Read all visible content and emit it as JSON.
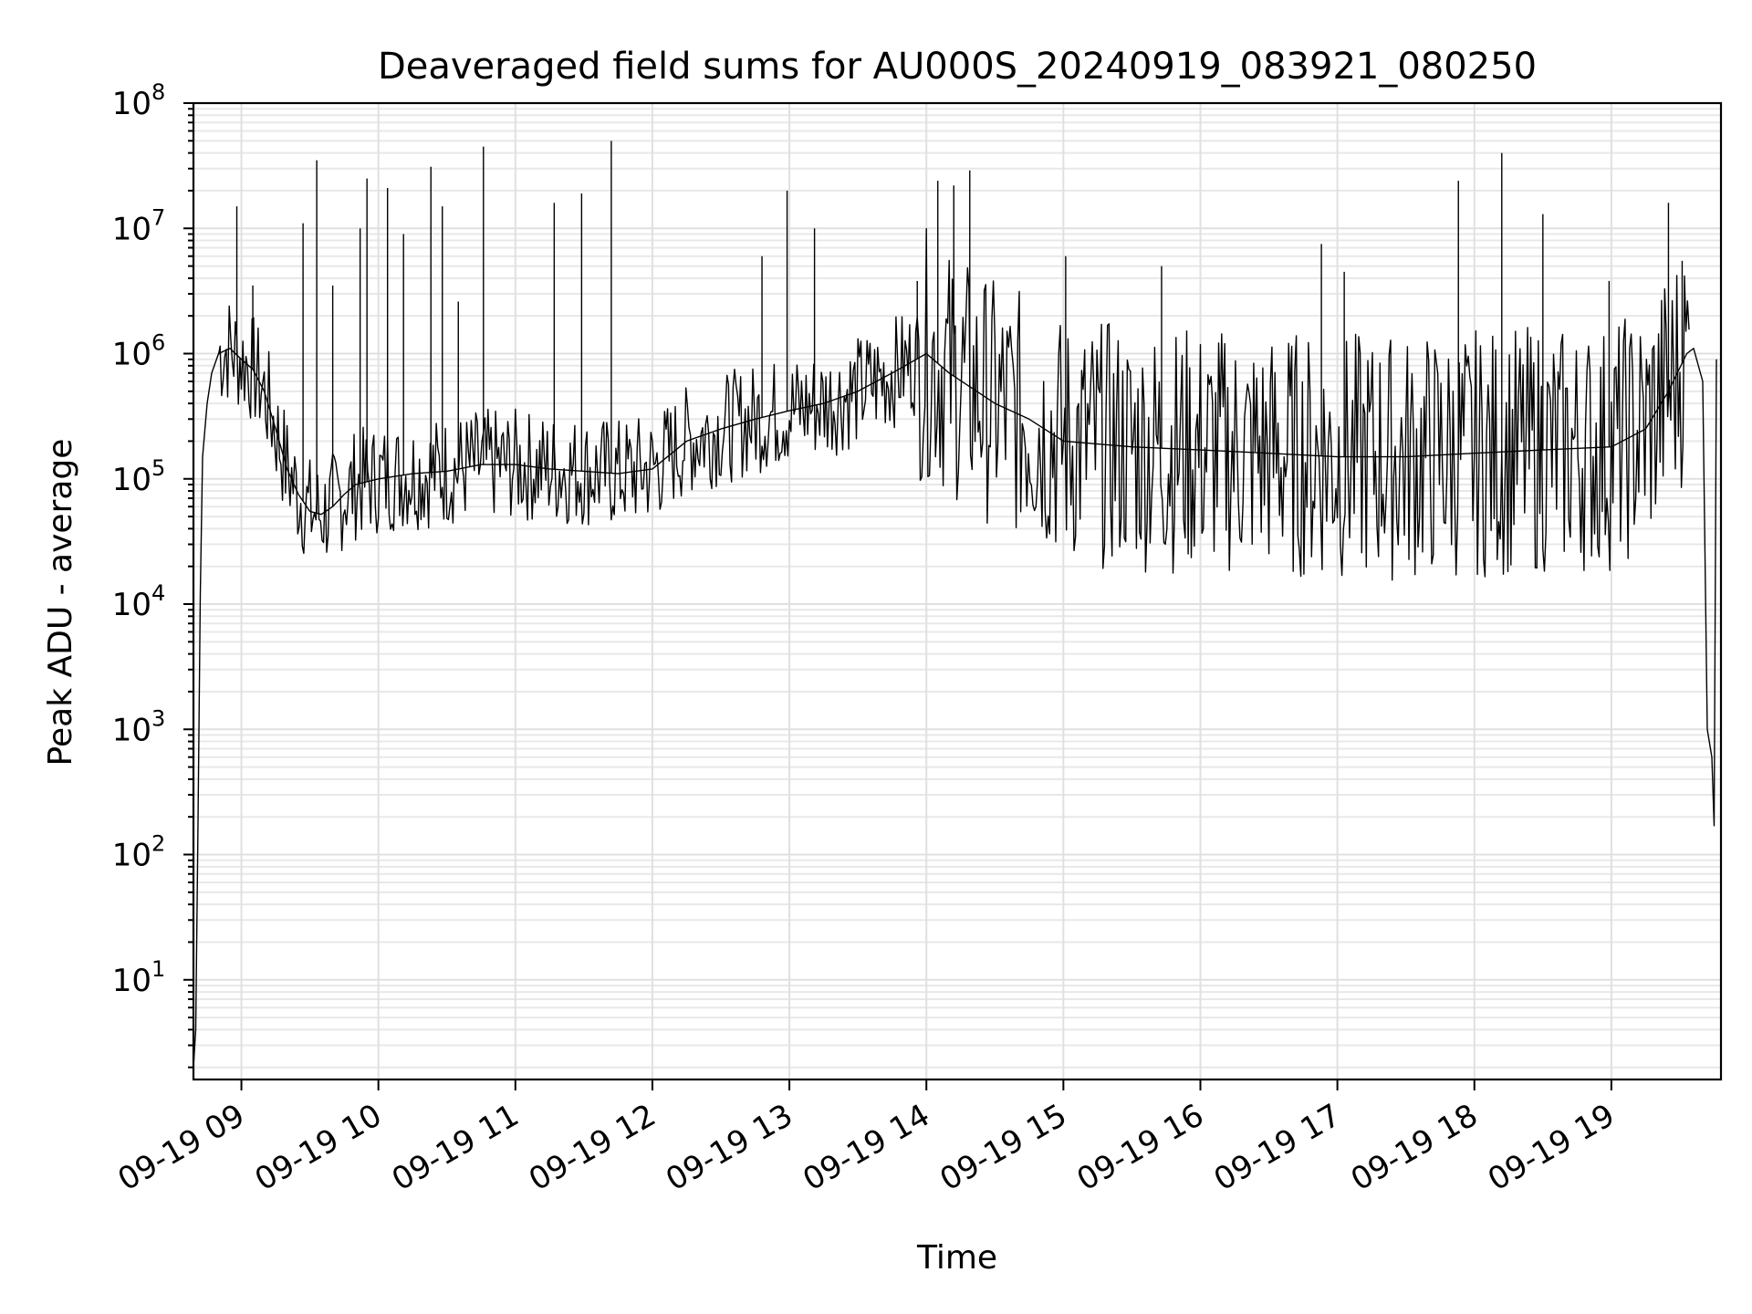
{
  "chart_data": {
    "type": "line",
    "title": "Deaveraged field sums for AU000S_20240919_083921_080250",
    "xlabel": "Time",
    "ylabel": "Peak ADU - average",
    "yscale": "log",
    "ylim": [
      1.6,
      100000000
    ],
    "xlim": [
      "2024-09-19 08:39",
      "2024-09-19 19:48"
    ],
    "grid": "on (major and minor)",
    "line_color": "#000000",
    "x_ticks": [
      "2024-09-19 09:00",
      "2024-09-19 10:00",
      "2024-09-19 11:00",
      "2024-09-19 12:00",
      "2024-09-19 13:00",
      "2024-09-19 14:00",
      "2024-09-19 15:00",
      "2024-09-19 16:00",
      "2024-09-19 17:00",
      "2024-09-19 18:00",
      "2024-09-19 19:00"
    ],
    "x_tick_labels": [
      "09-19 09",
      "09-19 10",
      "09-19 11",
      "09-19 12",
      "09-19 13",
      "09-19 14",
      "09-19 15",
      "09-19 16",
      "09-19 17",
      "09-19 18",
      "09-19 19"
    ],
    "y_ticks": [
      10,
      100,
      1000,
      10000,
      100000,
      1000000,
      10000000,
      100000000
    ],
    "y_tick_bases": [
      "10",
      "10",
      "10",
      "10",
      "10",
      "10",
      "10",
      "10"
    ],
    "y_tick_exponents": [
      "1",
      "2",
      "3",
      "4",
      "5",
      "6",
      "7",
      "8"
    ],
    "series": [
      {
        "points": [
          [
            "2024-09-19 08:39",
            2
          ],
          [
            "2024-09-19 08:40",
            4
          ],
          [
            "2024-09-19 08:41",
            180
          ],
          [
            "2024-09-19 08:42",
            12000
          ],
          [
            "2024-09-19 08:43",
            150000
          ],
          [
            "2024-09-19 08:45",
            400000
          ],
          [
            "2024-09-19 08:47",
            700000
          ],
          [
            "2024-09-19 08:50",
            1000000
          ],
          [
            "2024-09-19 08:55",
            1100000
          ],
          [
            "2024-09-19 09:00",
            900000
          ],
          [
            "2024-09-19 09:05",
            750000
          ],
          [
            "2024-09-19 09:10",
            500000
          ],
          [
            "2024-09-19 09:15",
            250000
          ],
          [
            "2024-09-19 09:20",
            120000
          ],
          [
            "2024-09-19 09:25",
            75000
          ],
          [
            "2024-09-19 09:30",
            55000
          ],
          [
            "2024-09-19 09:35",
            52000
          ],
          [
            "2024-09-19 09:40",
            60000
          ],
          [
            "2024-09-19 09:45",
            75000
          ],
          [
            "2024-09-19 09:50",
            90000
          ],
          [
            "2024-09-19 10:00",
            100000
          ],
          [
            "2024-09-19 10:15",
            110000
          ],
          [
            "2024-09-19 10:30",
            115000
          ],
          [
            "2024-09-19 10:45",
            130000
          ],
          [
            "2024-09-19 11:00",
            130000
          ],
          [
            "2024-09-19 11:15",
            120000
          ],
          [
            "2024-09-19 11:30",
            115000
          ],
          [
            "2024-09-19 11:45",
            110000
          ],
          [
            "2024-09-19 12:00",
            120000
          ],
          [
            "2024-09-19 12:15",
            200000
          ],
          [
            "2024-09-19 12:30",
            250000
          ],
          [
            "2024-09-19 12:45",
            300000
          ],
          [
            "2024-09-19 13:00",
            350000
          ],
          [
            "2024-09-19 13:15",
            400000
          ],
          [
            "2024-09-19 13:30",
            500000
          ],
          [
            "2024-09-19 13:45",
            700000
          ],
          [
            "2024-09-19 14:00",
            1000000
          ],
          [
            "2024-09-19 14:10",
            700000
          ],
          [
            "2024-09-19 14:30",
            400000
          ],
          [
            "2024-09-19 14:45",
            300000
          ],
          [
            "2024-09-19 15:00",
            200000
          ],
          [
            "2024-09-19 15:30",
            180000
          ],
          [
            "2024-09-19 16:00",
            170000
          ],
          [
            "2024-09-19 16:30",
            160000
          ],
          [
            "2024-09-19 17:00",
            150000
          ],
          [
            "2024-09-19 17:30",
            150000
          ],
          [
            "2024-09-19 18:00",
            160000
          ],
          [
            "2024-09-19 18:30",
            170000
          ],
          [
            "2024-09-19 19:00",
            180000
          ],
          [
            "2024-09-19 19:15",
            250000
          ],
          [
            "2024-09-19 19:25",
            500000
          ],
          [
            "2024-09-19 19:33",
            1000000
          ],
          [
            "2024-09-19 19:36",
            1100000
          ],
          [
            "2024-09-19 19:40",
            600000
          ],
          [
            "2024-09-19 19:42",
            1000
          ],
          [
            "2024-09-19 19:44",
            600
          ],
          [
            "2024-09-19 19:45",
            170
          ],
          [
            "2024-09-19 19:46",
            900000
          ]
        ],
        "spikes": [
          [
            "2024-09-19 08:58",
            15000000
          ],
          [
            "2024-09-19 09:05",
            3500000
          ],
          [
            "2024-09-19 09:27",
            11000000
          ],
          [
            "2024-09-19 09:33",
            35000000
          ],
          [
            "2024-09-19 09:40",
            3500000
          ],
          [
            "2024-09-19 09:52",
            10000000
          ],
          [
            "2024-09-19 09:55",
            25000000
          ],
          [
            "2024-09-19 10:04",
            21000000
          ],
          [
            "2024-09-19 10:11",
            9000000
          ],
          [
            "2024-09-19 10:23",
            31000000
          ],
          [
            "2024-09-19 10:28",
            15000000
          ],
          [
            "2024-09-19 10:35",
            2600000
          ],
          [
            "2024-09-19 10:46",
            45000000
          ],
          [
            "2024-09-19 11:17",
            16000000
          ],
          [
            "2024-09-19 11:29",
            19000000
          ],
          [
            "2024-09-19 11:42",
            50000000
          ],
          [
            "2024-09-19 12:48",
            6000000
          ],
          [
            "2024-09-19 12:59",
            20000000
          ],
          [
            "2024-09-19 13:11",
            10000000
          ],
          [
            "2024-09-19 13:56",
            3800000
          ],
          [
            "2024-09-19 14:05",
            24000000
          ],
          [
            "2024-09-19 14:12",
            22000000
          ],
          [
            "2024-09-19 14:19",
            29000000
          ],
          [
            "2024-09-19 15:01",
            6000000
          ],
          [
            "2024-09-19 15:43",
            5000000
          ],
          [
            "2024-09-19 16:53",
            7500000
          ],
          [
            "2024-09-19 17:03",
            4500000
          ],
          [
            "2024-09-19 17:53",
            24000000
          ],
          [
            "2024-09-19 18:12",
            40000000
          ],
          [
            "2024-09-19 18:30",
            13000000
          ],
          [
            "2024-09-19 18:59",
            3800000
          ],
          [
            "2024-09-19 19:25",
            16000000
          ],
          [
            "2024-09-19 19:31",
            5500000
          ]
        ]
      }
    ]
  }
}
